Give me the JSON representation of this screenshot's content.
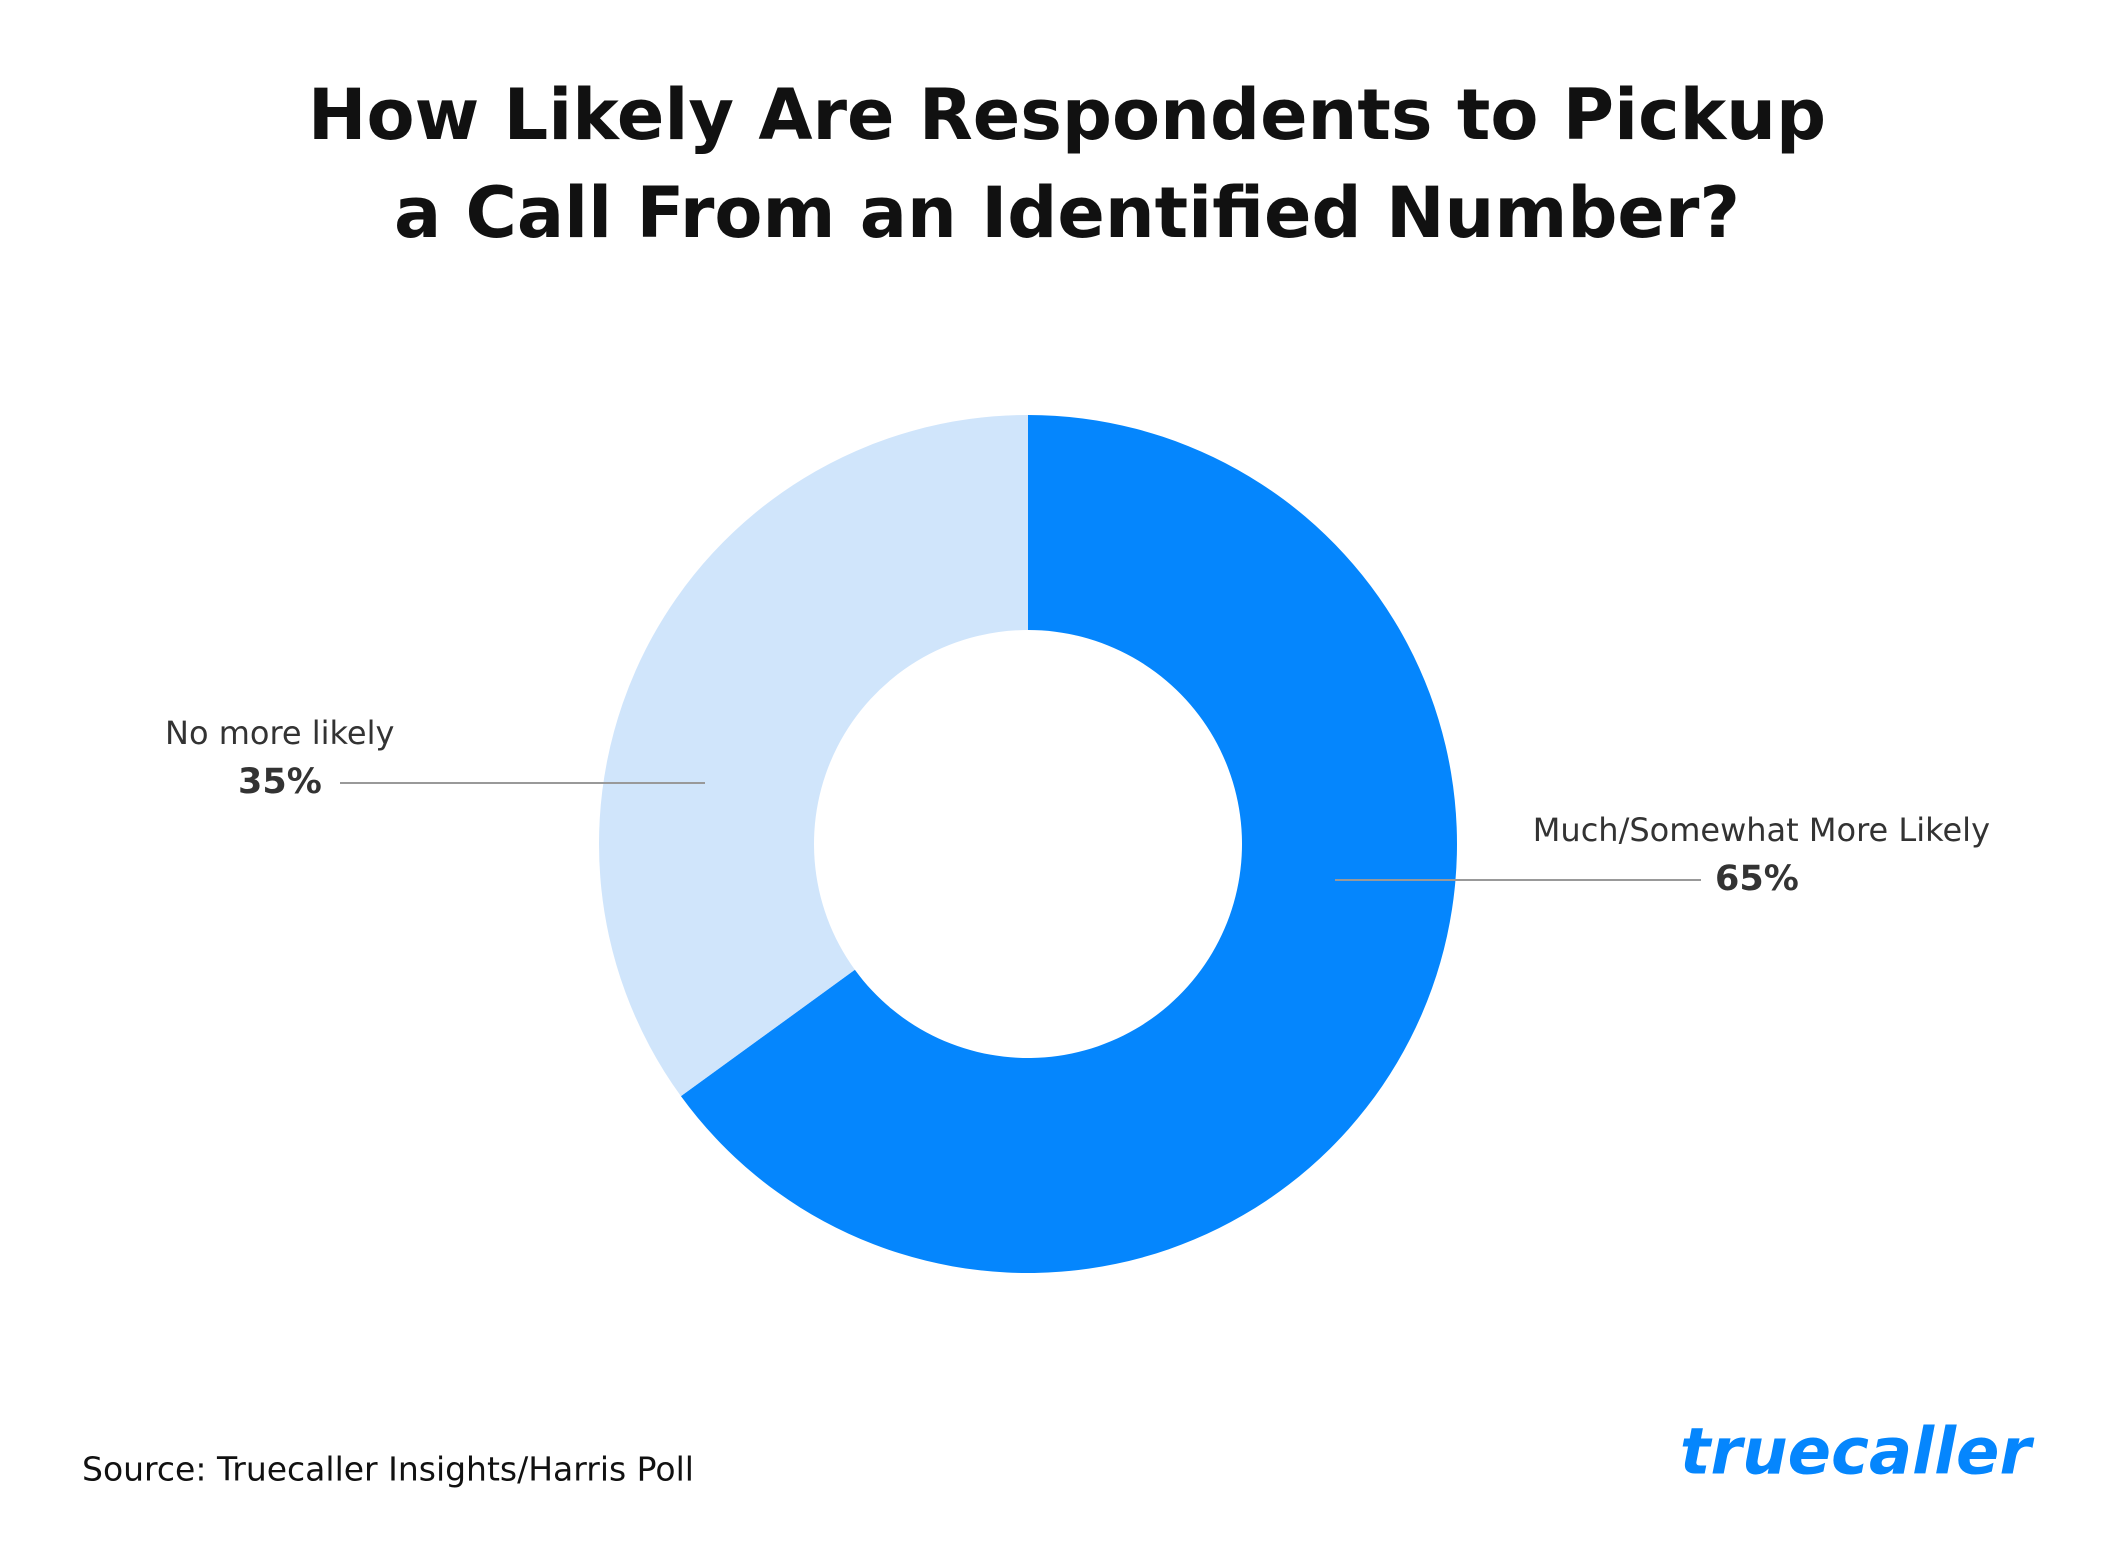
{
  "chart_data": {
    "type": "pie",
    "title": [
      "How Likely Are Respondents to Pickup",
      "a Call From an Identified Number?"
    ],
    "categories": [
      "Much/Somewhat More Likely",
      "No more likely"
    ],
    "values": [
      65,
      35
    ],
    "value_labels": [
      "65%",
      "35%"
    ],
    "colors": [
      "#0586fd",
      "#d0e5fb"
    ],
    "donut": true,
    "source": "Source: Truecaller Insights/Harris Poll",
    "brand": "truecaller"
  }
}
